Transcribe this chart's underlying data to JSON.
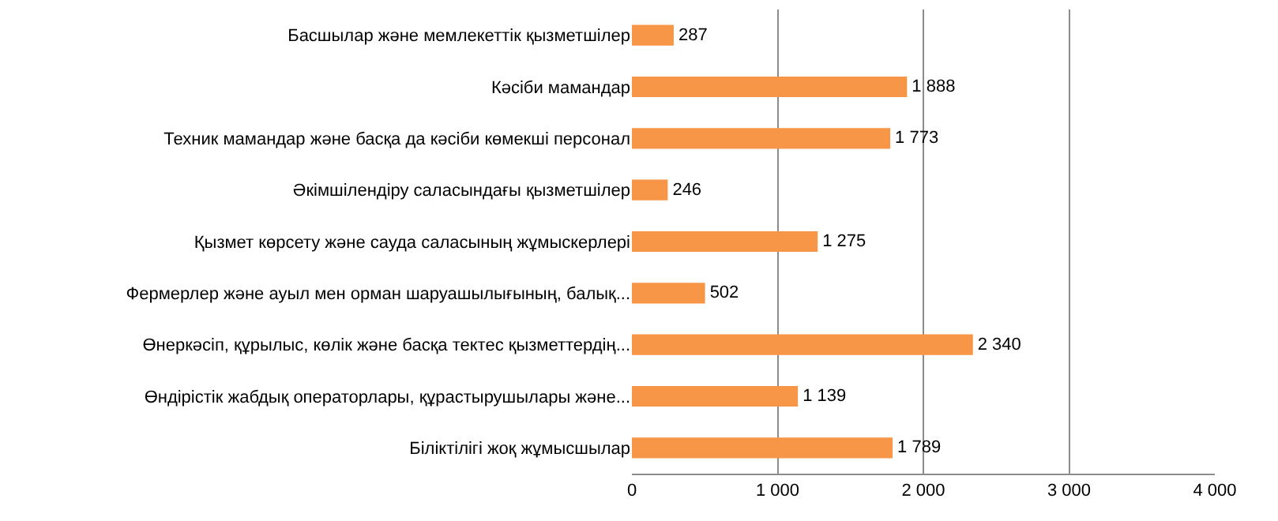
{
  "chart_data": {
    "type": "bar",
    "orientation": "horizontal",
    "categories": [
      "Басшылар және мемлекеттік қызметшілер",
      "Кәсіби мамандар",
      "Техник мамандар және басқа да кәсіби көмекші персонал",
      "Әкімшілендіру саласындағы қызметшілер",
      "Қызмет көрсету және сауда саласының жұмыскерлері",
      "Фермерлер және ауыл мен орман шаруашылығының, балық...",
      "Өнеркәсіп, құрылыс, көлік және басқа тектес қызметтердің...",
      "Өндірістік жабдық операторлары, құрастырушылары және...",
      "Біліктілігі жоқ жұмысшылар"
    ],
    "values": [
      287,
      1888,
      1773,
      246,
      1275,
      502,
      2340,
      1139,
      1789
    ],
    "value_labels": [
      "287",
      "1 888",
      "1 773",
      "246",
      "1 275",
      "502",
      "2 340",
      "1 139",
      "1 789"
    ],
    "color": "#f79646",
    "xlim": [
      0,
      4000
    ],
    "xticks": [
      0,
      {
        "value": 1000,
        "label": "1 000"
      },
      {
        "value": 2000,
        "label": "2 000"
      },
      {
        "value": 3000,
        "label": "3 000"
      },
      {
        "value": 4000,
        "label": "4 000"
      }
    ],
    "grid": "x"
  }
}
